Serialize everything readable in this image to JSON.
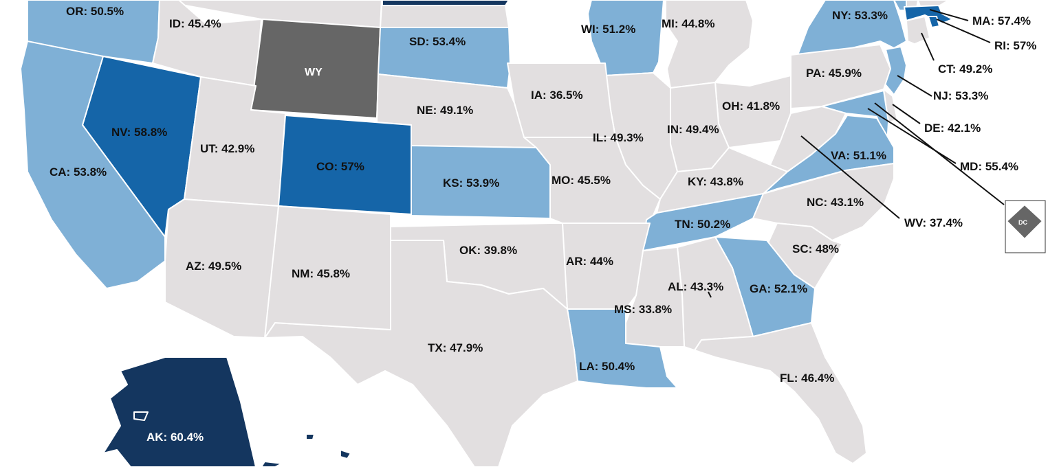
{
  "colors": {
    "level_1": "#e2dfe0",
    "level_2": "#7fb0d6",
    "level_3": "#1565a8",
    "level_4": "#14365f",
    "no_data": "#666666",
    "border": "#ffffff"
  },
  "states": [
    {
      "id": "or",
      "label": "OR: 50.5%",
      "level": "level_2"
    },
    {
      "id": "id",
      "label": "ID: 45.4%",
      "level": "level_1"
    },
    {
      "id": "wy",
      "label": "WY",
      "level": "no_data"
    },
    {
      "id": "sd",
      "label": "SD: 53.4%",
      "level": "level_2"
    },
    {
      "id": "wi",
      "label": "WI: 51.2%",
      "level": "level_2"
    },
    {
      "id": "mi",
      "label": "MI: 44.8%",
      "level": "level_1"
    },
    {
      "id": "ny",
      "label": "NY: 53.3%",
      "level": "level_2"
    },
    {
      "id": "ma",
      "label": "MA: 57.4%",
      "level": "level_3"
    },
    {
      "id": "ri",
      "label": "RI: 57%",
      "level": "level_3"
    },
    {
      "id": "ct",
      "label": "CT: 49.2%",
      "level": "level_1"
    },
    {
      "id": "nj",
      "label": "NJ: 53.3%",
      "level": "level_2"
    },
    {
      "id": "de",
      "label": "DE: 42.1%",
      "level": "level_1"
    },
    {
      "id": "md",
      "label": "MD: 55.4%",
      "level": "level_2"
    },
    {
      "id": "pa",
      "label": "PA: 45.9%",
      "level": "level_1"
    },
    {
      "id": "oh",
      "label": "OH: 41.8%",
      "level": "level_1"
    },
    {
      "id": "in",
      "label": "IN: 49.4%",
      "level": "level_1"
    },
    {
      "id": "il",
      "label": "IL: 49.3%",
      "level": "level_1"
    },
    {
      "id": "ia",
      "label": "IA: 36.5%",
      "level": "level_1"
    },
    {
      "id": "ne",
      "label": "NE: 49.1%",
      "level": "level_1"
    },
    {
      "id": "nv",
      "label": "NV: 58.8%",
      "level": "level_3"
    },
    {
      "id": "ut",
      "label": "UT: 42.9%",
      "level": "level_1"
    },
    {
      "id": "ca",
      "label": "CA: 53.8%",
      "level": "level_2"
    },
    {
      "id": "co",
      "label": "CO: 57%",
      "level": "level_3"
    },
    {
      "id": "ks",
      "label": "KS: 53.9%",
      "level": "level_2"
    },
    {
      "id": "mo",
      "label": "MO: 45.5%",
      "level": "level_1"
    },
    {
      "id": "ky",
      "label": "KY: 43.8%",
      "level": "level_1"
    },
    {
      "id": "va",
      "label": "VA: 51.1%",
      "level": "level_2"
    },
    {
      "id": "wv",
      "label": "WV: 37.4%",
      "level": "level_1"
    },
    {
      "id": "nc",
      "label": "NC: 43.1%",
      "level": "level_1"
    },
    {
      "id": "tn",
      "label": "TN: 50.2%",
      "level": "level_2"
    },
    {
      "id": "sc",
      "label": "SC: 48%",
      "level": "level_1"
    },
    {
      "id": "ga",
      "label": "GA: 52.1%",
      "level": "level_2"
    },
    {
      "id": "al",
      "label": "AL: 43.3%",
      "level": "level_1"
    },
    {
      "id": "ms",
      "label": "MS: 33.8%",
      "level": "level_1"
    },
    {
      "id": "la",
      "label": "LA: 50.4%",
      "level": "level_2"
    },
    {
      "id": "ar",
      "label": "AR: 44%",
      "level": "level_1"
    },
    {
      "id": "ok",
      "label": "OK: 39.8%",
      "level": "level_1"
    },
    {
      "id": "az",
      "label": "AZ: 49.5%",
      "level": "level_1"
    },
    {
      "id": "nm",
      "label": "NM: 45.8%",
      "level": "level_1"
    },
    {
      "id": "tx",
      "label": "TX: 47.9%",
      "level": "level_1"
    },
    {
      "id": "fl",
      "label": "FL: 46.4%",
      "level": "level_1"
    },
    {
      "id": "ak",
      "label": "AK: 60.4%",
      "level": "level_4"
    },
    {
      "id": "dc",
      "label": "DC",
      "level": "no_data"
    },
    {
      "id": "mn",
      "label": "",
      "level": "level_4"
    },
    {
      "id": "wa",
      "label": "",
      "level": "level_2"
    },
    {
      "id": "mt",
      "label": "",
      "level": "level_1"
    },
    {
      "id": "nd",
      "label": "",
      "level": "level_1"
    },
    {
      "id": "me",
      "label": "",
      "level": "level_1"
    },
    {
      "id": "vt",
      "label": "",
      "level": "level_2"
    },
    {
      "id": "nh",
      "label": "",
      "level": "level_1"
    }
  ]
}
